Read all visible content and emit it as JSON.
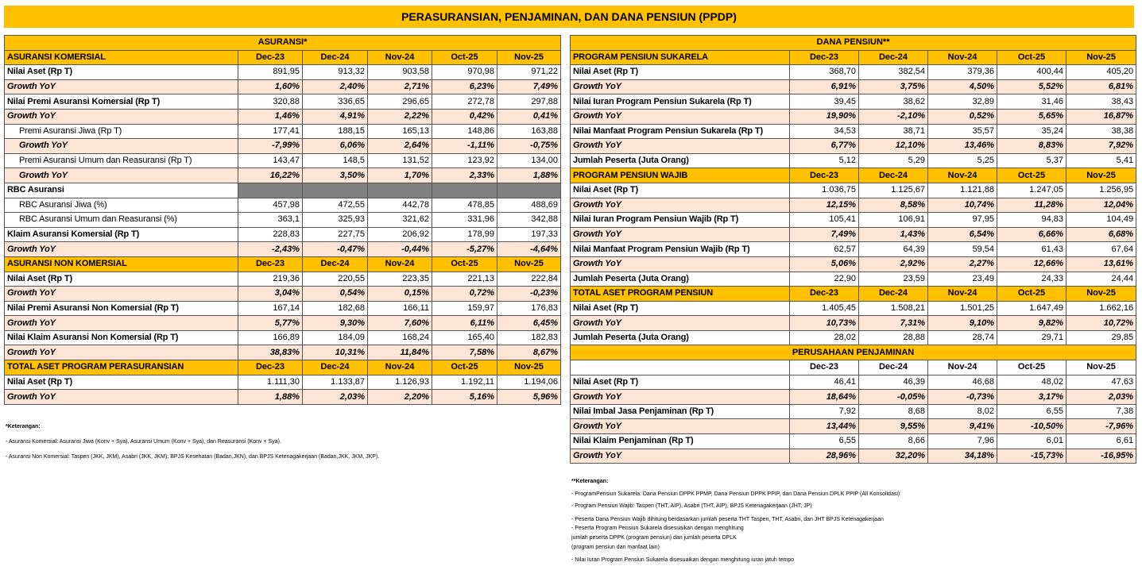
{
  "title": "PERASURANSIAN, PENJAMINAN, DAN DANA PENSIUN (PPDP)",
  "asuransi": {
    "title": "ASURANSI*",
    "sections": [
      {
        "header": [
          "ASURANSI KOMERSIAL",
          "Dec-23",
          "Dec-24",
          "Nov-24",
          "Oct-25",
          "Nov-25"
        ],
        "rows": [
          [
            "Nilai Aset (Rp T)",
            "891,95",
            "913,32",
            "903,58",
            "970,98",
            "971,22"
          ],
          [
            "Growth YoY",
            "1,60%",
            "2,40%",
            "2,71%",
            "6,23%",
            "7,49%"
          ],
          [
            "Nilai Premi Asuransi Komersial (Rp T)",
            "320,88",
            "336,65",
            "296,65",
            "272,78",
            "297,88"
          ],
          [
            "Growth YoY",
            "1,46%",
            "4,91%",
            "2,22%",
            "0,42%",
            "0,41%"
          ],
          [
            "Premi Asuransi Jiwa (Rp T)",
            "177,41",
            "188,15",
            "165,13",
            "148,86",
            "163,88"
          ],
          [
            "Growth YoY",
            "-7,99%",
            "6,06%",
            "2,64%",
            "-1,11%",
            "-0,75%"
          ],
          [
            "Premi Asuransi Umum dan Reasuransi (Rp T)",
            "143,47",
            "148,5",
            "131,52",
            "123,92",
            "134,00"
          ],
          [
            "Growth YoY",
            "16,22%",
            "3,50%",
            "1,70%",
            "2,33%",
            "1,88%"
          ],
          [
            "RBC Asuransi"
          ],
          [
            "RBC Asuransi Jiwa (%)",
            "457,98",
            "472,55",
            "442,78",
            "478,85",
            "488,69"
          ],
          [
            "RBC Asuransi Umum dan Reasuransi (%)",
            "363,1",
            "325,93",
            "321,62",
            "331,96",
            "342,88"
          ],
          [
            "Klaim Asuransi Komersial (Rp T)",
            "228,83",
            "227,75",
            "206,92",
            "178,99",
            "197,33"
          ],
          [
            "Growth YoY",
            "-2,43%",
            "-0,47%",
            "-0,44%",
            "-5,27%",
            "-4,64%"
          ]
        ]
      },
      {
        "header": [
          "ASURANSI NON KOMERSIAL",
          "Dec-23",
          "Dec-24",
          "Nov-24",
          "Oct-25",
          "Nov-25"
        ],
        "rows": [
          [
            "Nilai Aset (Rp T)",
            "219,36",
            "220,55",
            "223,35",
            "221,13",
            "222,84"
          ],
          [
            "Growth YoY",
            "3,04%",
            "0,54%",
            "0,15%",
            "0,72%",
            "-0,23%"
          ],
          [
            "Nilai Premi Asuransi Non Komersial (Rp T)",
            "167,14",
            "182,68",
            "166,11",
            "159,97",
            "176,83"
          ],
          [
            "Growth YoY",
            "5,77%",
            "9,30%",
            "7,60%",
            "6,11%",
            "6,45%"
          ],
          [
            "Nilai Klaim Asuransi Non Komersial (Rp T)",
            "166,89",
            "184,09",
            "168,24",
            "165,40",
            "182,83"
          ],
          [
            "Growth YoY",
            "38,83%",
            "10,31%",
            "11,84%",
            "7,58%",
            "8,67%"
          ]
        ]
      },
      {
        "header": [
          "TOTAL ASET PROGRAM PERASURANSIAN",
          "Dec-23",
          "Dec-24",
          "Nov-24",
          "Oct-25",
          "Nov-25"
        ],
        "rows": [
          [
            "Nilai Aset (Rp T)",
            "1.111,30",
            "1.133,87",
            "1.126,93",
            "1.192,11",
            "1.194,06"
          ],
          [
            "Growth YoY",
            "1,88%",
            "2,03%",
            "2,20%",
            "5,16%",
            "5,96%"
          ]
        ]
      }
    ]
  },
  "dana_pensiun": {
    "title": "DANA PENSIUN**",
    "sections": [
      {
        "header": [
          "PROGRAM PENSIUN SUKARELA",
          "Dec-23",
          "Dec-24",
          "Nov-24",
          "Oct-25",
          "Nov-25"
        ],
        "rows": [
          [
            "Nilai Aset (Rp T)",
            "368,70",
            "382,54",
            "379,36",
            "400,44",
            "405,20"
          ],
          [
            "Growth YoY",
            "6,91%",
            "3,75%",
            "4,50%",
            "5,52%",
            "6,81%"
          ],
          [
            "Nilai Iuran Program Pensiun Sukarela (Rp T)",
            "39,45",
            "38,62",
            "32,89",
            "31,46",
            "38,43"
          ],
          [
            "Growth YoY",
            "19,90%",
            "-2,10%",
            "0,52%",
            "5,65%",
            "16,87%"
          ],
          [
            "Nilai Manfaat Program Pensiun Sukarela (Rp T)",
            "34,53",
            "38,71",
            "35,57",
            "35,24",
            "38,38"
          ],
          [
            "Growth YoY",
            "6,77%",
            "12,10%",
            "13,46%",
            "8,83%",
            "7,92%"
          ],
          [
            "Jumlah Peserta (Juta Orang)",
            "5,12",
            "5,29",
            "5,25",
            "5,37",
            "5,41"
          ]
        ]
      },
      {
        "header": [
          "PROGRAM PENSIUN WAJIB",
          "Dec-23",
          "Dec-24",
          "Nov-24",
          "Oct-25",
          "Nov-25"
        ],
        "rows": [
          [
            "Nilai Aset (Rp T)",
            "1.036,75",
            "1.125,67",
            "1.121,88",
            "1.247,05",
            "1.256,95"
          ],
          [
            "Growth YoY",
            "12,15%",
            "8,58%",
            "10,74%",
            "11,28%",
            "12,04%"
          ],
          [
            "Nilai Iuran Program Pensiun Wajib (Rp T)",
            "105,41",
            "106,91",
            "97,95",
            "94,83",
            "104,49"
          ],
          [
            "Growth YoY",
            "7,49%",
            "1,43%",
            "6,54%",
            "6,66%",
            "6,68%"
          ],
          [
            "Nilai Manfaat Program Pensiun Wajib (Rp T)",
            "62,57",
            "64,39",
            "59,54",
            "61,43",
            "67,64"
          ],
          [
            "Growth YoY",
            "5,06%",
            "2,92%",
            "2,27%",
            "12,66%",
            "13,61%"
          ],
          [
            "Jumlah Peserta (Juta Orang)",
            "22,90",
            "23,59",
            "23,49",
            "24,33",
            "24,44"
          ]
        ]
      },
      {
        "header": [
          "TOTAL ASET PROGRAM PENSIUN",
          "Dec-23",
          "Dec-24",
          "Nov-24",
          "Oct-25",
          "Nov-25"
        ],
        "rows": [
          [
            "Nilai Aset (Rp T)",
            "1.405,45",
            "1.508,21",
            "1.501,25",
            "1.647,49",
            "1.662,16"
          ],
          [
            "Growth YoY",
            "10,73%",
            "7,31%",
            "9,10%",
            "9,82%",
            "10,72%"
          ],
          [
            "Jumlah Peserta (Juta Orang)",
            "28,02",
            "28,88",
            "28,74",
            "29,71",
            "29,85"
          ]
        ]
      }
    ],
    "penjaminan": {
      "title": "PERUSAHAAN PENJAMINAN",
      "columns": [
        "Dec-23",
        "Dec-24",
        "Nov-24",
        "Oct-25",
        "Nov-25"
      ],
      "rows": [
        [
          "Nilai Aset (Rp T)",
          "46,41",
          "46,39",
          "46,68",
          "48,02",
          "47,63"
        ],
        [
          "Growth YoY",
          "18,64%",
          "-0,05%",
          "-0,73%",
          "3,17%",
          "2,03%"
        ],
        [
          "Nilai Imbal Jasa Penjaminan (Rp T)",
          "7,92",
          "8,68",
          "8,02",
          "6,55",
          "7,38"
        ],
        [
          "Growth YoY",
          "13,44%",
          "9,55%",
          "9,41%",
          "-10,50%",
          "-7,96%"
        ],
        [
          "Nilai Klaim Penjaminan (Rp T)",
          "6,55",
          "8,66",
          "7,96",
          "6,01",
          "6,61"
        ],
        [
          "Growth YoY",
          "28,96%",
          "32,20%",
          "34,18%",
          "-15,73%",
          "-16,95%"
        ]
      ]
    }
  },
  "notes_left": {
    "title": "*Keterangan:",
    "items": [
      "- Asuransi Komersial: Asuransi Jiwa (Konv + Sya), Asuransi Umum (Konv + Sya), dan Reasuransi (Konv + Sya).",
      "- Asuransi Non Komersial: Taspen (JKK, JKM), Asabri (JKK, JKM), BPJS Kesehatan (Badan,JKN), dan BPJS Ketenagakerjaan (Badan,JKK, JKM, JKP)."
    ]
  },
  "notes_right": {
    "title": "**Keterangan:",
    "items": [
      "- ProgramPensiun Sukarela: Dana Pensiun DPPK PPMP,  Dana Pensiun DPPK PPIP, dan Dana Pensiun DPLK PPIP (All Konsolidasi)",
      "- Program Pensiun Wajib: Taspen (THT, AIP), Asabri (THT, AIP), BPJS Ketenagakerjaan (JHT, JP)",
      "- Peserta Dana Pensiun Wajib dihitung berdasarkan jumlah peserta THT Taspen, THT, Asabri, dan JHT BPJS Ketenagakerjaan",
      "- Peserta Program Pensiun Sukarela disesuaikan dengan menghitung",
      "jumlah peserta DPPK (program pensiun) dan jumlah peserta DPLK",
      "(program pensiun dan manfaat lain)",
      "- Nilai Iuran Program Pensiun Sukarela disesuaikan dengan menghitung iuran jatuh tempo"
    ]
  }
}
